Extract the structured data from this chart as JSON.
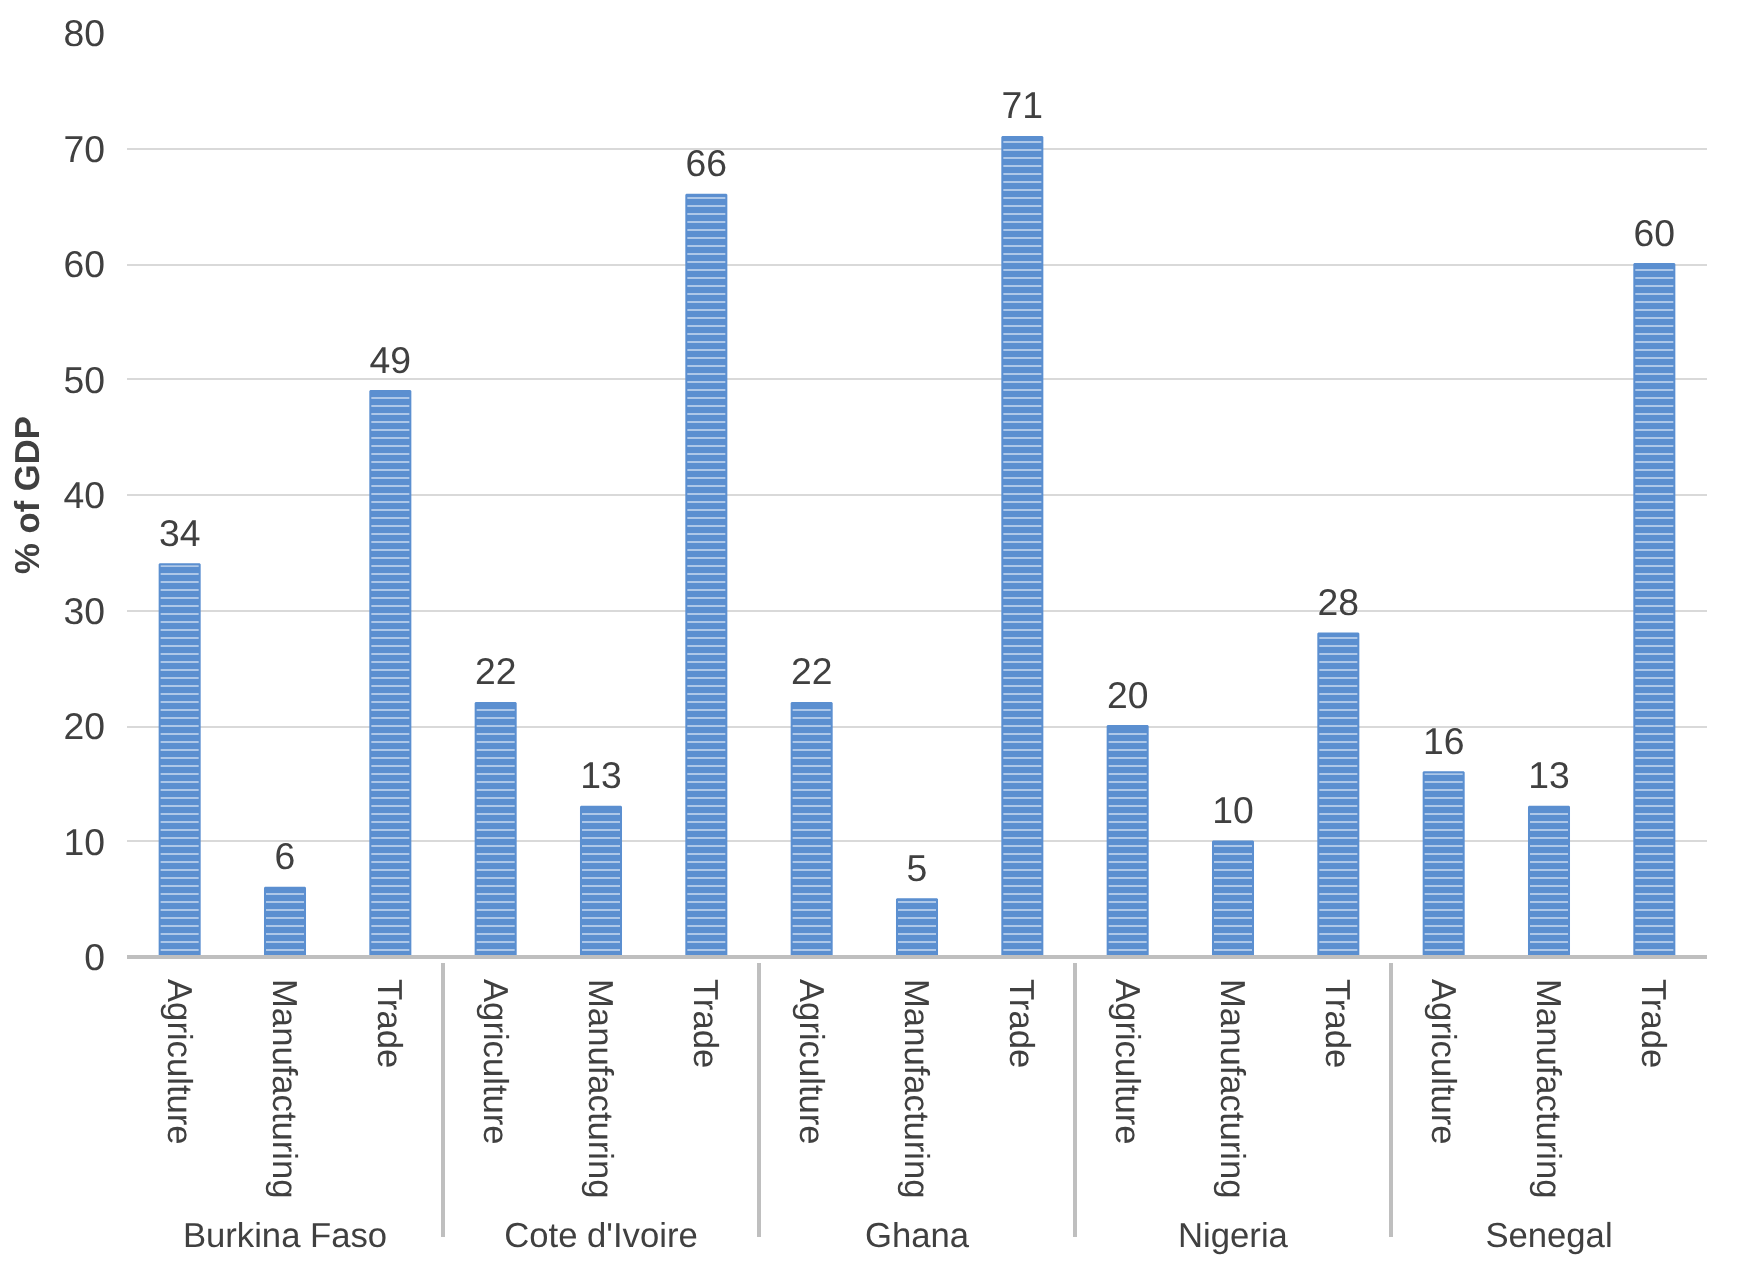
{
  "chart_data": {
    "type": "bar",
    "ylabel": "% of GDP",
    "categories": [
      "Burkina Faso",
      "Cote d'Ivoire",
      "Ghana",
      "Nigeria",
      "Senegal"
    ],
    "series": [
      {
        "name": "Agriculture",
        "color": "#5b8fd0",
        "values": [
          34,
          22,
          22,
          20,
          16
        ]
      },
      {
        "name": "Manufacturing",
        "color": "#5b8fd0",
        "values": [
          6,
          13,
          5,
          10,
          13
        ]
      },
      {
        "name": "Trade",
        "color": "#5b8fd0",
        "values": [
          49,
          66,
          71,
          28,
          60
        ]
      }
    ],
    "ylim": [
      0,
      80
    ],
    "yticks": [
      0,
      10,
      20,
      30,
      40,
      50,
      60,
      70,
      80
    ],
    "grid": "y",
    "data_labels": true
  }
}
